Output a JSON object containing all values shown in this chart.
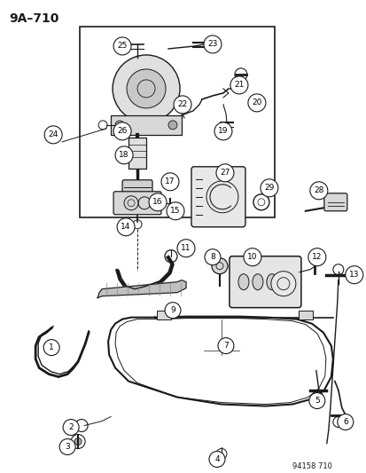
{
  "title": "9A–710",
  "watermark": "94158 710",
  "bg_color": "#ffffff",
  "line_color": "#1a1a1a",
  "fig_width": 4.14,
  "fig_height": 5.33,
  "dpi": 100
}
